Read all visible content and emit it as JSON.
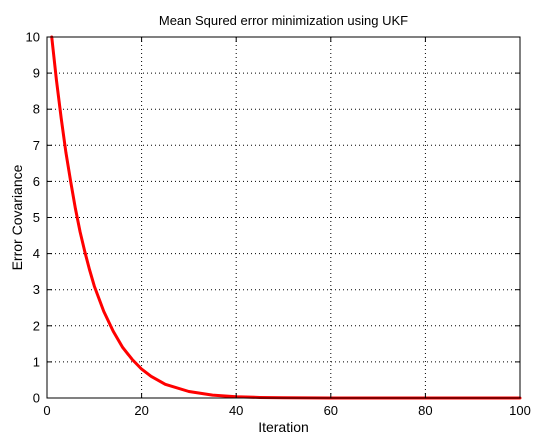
{
  "chart_data": {
    "type": "line",
    "title": "Mean Squred error minimization using UKF",
    "xlabel": "Iteration",
    "ylabel": "Error Covariance",
    "xlim": [
      0,
      100
    ],
    "ylim": [
      0,
      10
    ],
    "xticks": [
      0,
      20,
      40,
      60,
      80,
      100
    ],
    "yticks": [
      0,
      1,
      2,
      3,
      4,
      5,
      6,
      7,
      8,
      9,
      10
    ],
    "grid": true,
    "series": [
      {
        "color": "#ff0000",
        "x": [
          1,
          2,
          3,
          4,
          5,
          6,
          7,
          8,
          9,
          10,
          12,
          14,
          16,
          18,
          20,
          22,
          25,
          30,
          35,
          40,
          45,
          50,
          60,
          70,
          80,
          90,
          100
        ],
        "y": [
          10,
          8.8,
          7.75,
          6.8,
          6.0,
          5.25,
          4.6,
          4.05,
          3.55,
          3.1,
          2.4,
          1.85,
          1.4,
          1.07,
          0.8,
          0.6,
          0.38,
          0.18,
          0.08,
          0.035,
          0.015,
          0.006,
          0.001,
          0.0,
          0.0,
          0.0,
          0.0
        ]
      }
    ]
  }
}
